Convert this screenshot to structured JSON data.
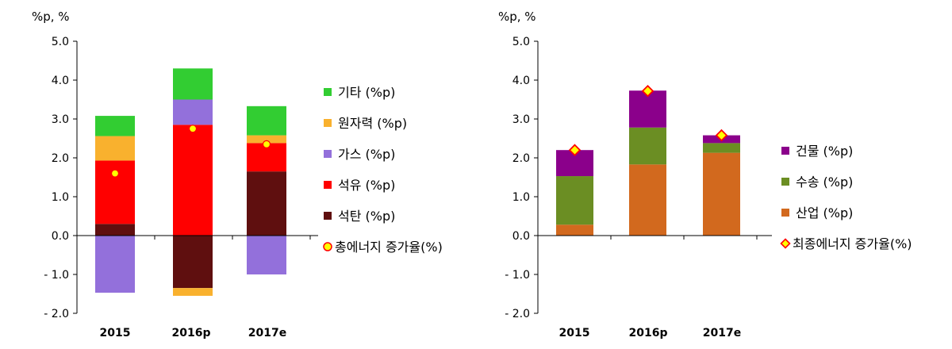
{
  "chart_data": [
    {
      "type": "bar",
      "stacked": true,
      "unit_label": "%p, %",
      "categories": [
        "2015",
        "2016p",
        "2017e"
      ],
      "ylim": [
        -2.0,
        5.0
      ],
      "yticks": [
        "5.0",
        "4.0",
        "3.0",
        "2.0",
        "1.0",
        "0.0",
        "- 1.0",
        "- 2.0"
      ],
      "series": [
        {
          "name": "석탄 (%p)",
          "color": "#5f0f0f",
          "values": [
            0.3,
            -1.35,
            1.65
          ]
        },
        {
          "name": "석유 (%p)",
          "color": "#ff0000",
          "values": [
            1.63,
            2.85,
            0.73
          ]
        },
        {
          "name": "가스 (%p)",
          "color": "#9370db",
          "values": [
            -1.47,
            0.65,
            -1.0
          ]
        },
        {
          "name": "원자력 (%p)",
          "color": "#f9b12e",
          "values": [
            0.63,
            -0.2,
            0.2
          ]
        },
        {
          "name": "기타 (%p)",
          "color": "#32cd32",
          "values": [
            0.52,
            0.8,
            0.75
          ]
        }
      ],
      "markers": {
        "name": "총에너지 증가율(%)",
        "shape": "circle",
        "fill": "#ffff00",
        "stroke": "#ff0000",
        "values": [
          1.6,
          2.75,
          2.35
        ]
      },
      "legend_order": [
        "기타 (%p)",
        "원자력 (%p)",
        "가스 (%p)",
        "석유 (%p)",
        "석탄 (%p)"
      ]
    },
    {
      "type": "bar",
      "stacked": true,
      "unit_label": "%p, %",
      "categories": [
        "2015",
        "2016p",
        "2017e"
      ],
      "ylim": [
        -2.0,
        5.0
      ],
      "yticks": [
        "5.0",
        "4.0",
        "3.0",
        "2.0",
        "1.0",
        "0.0",
        "- 1.0",
        "- 2.0"
      ],
      "series": [
        {
          "name": "산업 (%p)",
          "color": "#d2691e",
          "values": [
            0.28,
            1.83,
            2.13
          ]
        },
        {
          "name": "수송 (%p)",
          "color": "#6b8e23",
          "values": [
            1.25,
            0.95,
            0.25
          ]
        },
        {
          "name": "건물 (%p)",
          "color": "#8b008b",
          "values": [
            0.67,
            0.95,
            0.2
          ]
        }
      ],
      "markers": {
        "name": "최종에너지 증가율(%)",
        "shape": "diamond",
        "fill": "#ffff00",
        "stroke": "#ff0000",
        "values": [
          2.2,
          3.72,
          2.58
        ]
      },
      "legend_order": [
        "건물 (%p)",
        "수송 (%p)",
        "산업 (%p)"
      ]
    }
  ]
}
